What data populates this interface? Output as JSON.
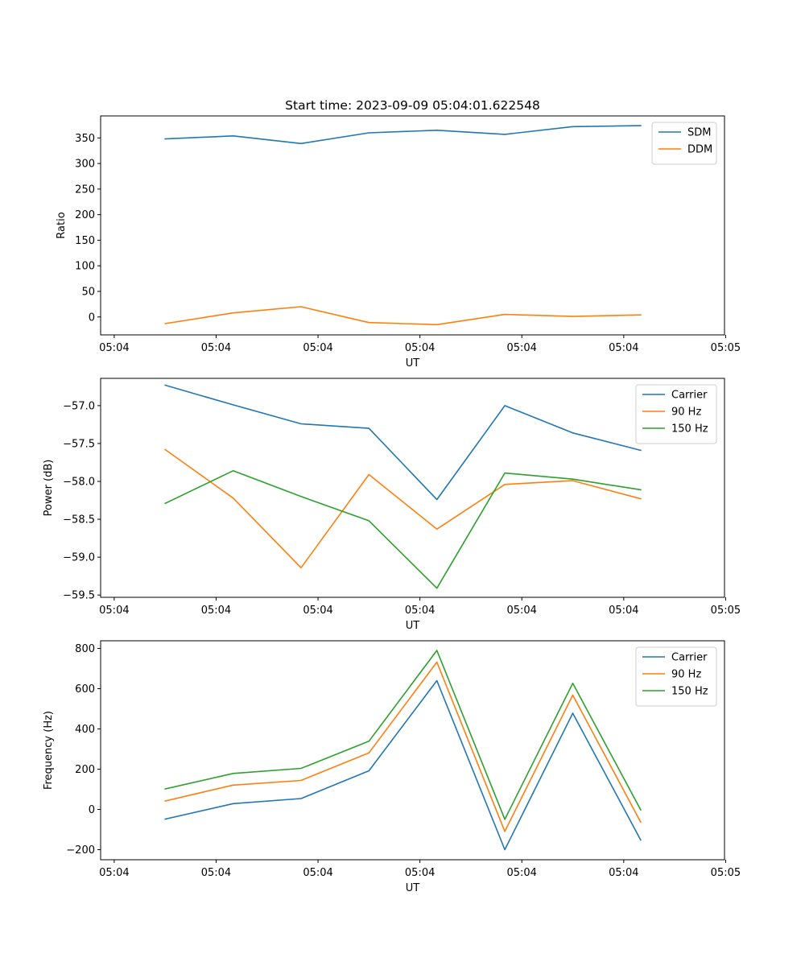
{
  "colors": {
    "blue": "#1f77b4",
    "orange": "#ff7f0e",
    "green": "#2ca02c"
  },
  "chart_data": [
    {
      "type": "line",
      "title": "Start time: 2023-09-09 05:04:01.622548",
      "xlabel": "UT",
      "ylabel": "Ratio",
      "x": [
        0.6,
        1.2,
        1.8,
        2.4,
        3.0,
        3.6,
        4.2,
        4.8
      ],
      "xlim": [
        0.03,
        5.54
      ],
      "xticks": [
        0.15,
        1.05,
        1.95,
        2.85,
        3.75,
        4.65,
        5.55
      ],
      "xtick_labels": [
        "05:04",
        "05:04",
        "05:04",
        "05:04",
        "05:04",
        "05:04",
        "05:05"
      ],
      "ylim": [
        -35,
        393
      ],
      "yticks": [
        0,
        50,
        100,
        150,
        200,
        250,
        300,
        350
      ],
      "ytick_labels": [
        "0",
        "50",
        "100",
        "150",
        "200",
        "250",
        "300",
        "350"
      ],
      "legend_position": "top-right",
      "series": [
        {
          "name": "SDM",
          "color": "#1f77b4",
          "values": [
            348,
            354,
            339,
            360,
            365,
            357,
            372,
            374
          ]
        },
        {
          "name": "DDM",
          "color": "#ff7f0e",
          "values": [
            -13,
            8,
            20,
            -11,
            -15,
            5,
            1,
            4
          ]
        }
      ]
    },
    {
      "type": "line",
      "title": "",
      "xlabel": "UT",
      "ylabel": "Power (dB)",
      "x": [
        0.6,
        1.2,
        1.8,
        2.4,
        3.0,
        3.6,
        4.2,
        4.8
      ],
      "xlim": [
        0.03,
        5.54
      ],
      "xticks": [
        0.15,
        1.05,
        1.95,
        2.85,
        3.75,
        4.65,
        5.55
      ],
      "xtick_labels": [
        "05:04",
        "05:04",
        "05:04",
        "05:04",
        "05:04",
        "05:04",
        "05:05"
      ],
      "ylim": [
        -59.53,
        -56.64
      ],
      "yticks": [
        -59.5,
        -59.0,
        -58.5,
        -58.0,
        -57.5,
        -57.0
      ],
      "ytick_labels": [
        "−59.5",
        "−59.0",
        "−58.5",
        "−58.0",
        "−57.5",
        "−57.0"
      ],
      "legend_position": "top-right",
      "series": [
        {
          "name": "Carrier",
          "color": "#1f77b4",
          "values": [
            -56.73,
            -56.99,
            -57.24,
            -57.3,
            -58.24,
            -57.0,
            -57.36,
            -57.59
          ]
        },
        {
          "name": "90 Hz",
          "color": "#ff7f0e",
          "values": [
            -57.58,
            -58.22,
            -59.14,
            -57.91,
            -58.63,
            -58.04,
            -57.99,
            -58.23
          ]
        },
        {
          "name": "150 Hz",
          "color": "#2ca02c",
          "values": [
            -58.29,
            -57.86,
            -58.2,
            -58.52,
            -59.41,
            -57.89,
            -57.97,
            -58.11
          ]
        }
      ]
    },
    {
      "type": "line",
      "title": "",
      "xlabel": "UT",
      "ylabel": "Frequency (Hz)",
      "x": [
        0.6,
        1.2,
        1.8,
        2.4,
        3.0,
        3.6,
        4.2,
        4.8
      ],
      "xlim": [
        0.03,
        5.54
      ],
      "xticks": [
        0.15,
        1.05,
        1.95,
        2.85,
        3.75,
        4.65,
        5.55
      ],
      "xtick_labels": [
        "05:04",
        "05:04",
        "05:04",
        "05:04",
        "05:04",
        "05:04",
        "05:05"
      ],
      "ylim": [
        -250,
        838
      ],
      "yticks": [
        -200,
        0,
        200,
        400,
        600,
        800
      ],
      "ytick_labels": [
        "−200",
        "0",
        "200",
        "400",
        "600",
        "800"
      ],
      "legend_position": "top-right",
      "series": [
        {
          "name": "Carrier",
          "color": "#1f77b4",
          "values": [
            -48,
            29,
            54,
            192,
            640,
            -200,
            478,
            -152
          ]
        },
        {
          "name": "90 Hz",
          "color": "#ff7f0e",
          "values": [
            42,
            121,
            144,
            281,
            732,
            -109,
            568,
            -63
          ]
        },
        {
          "name": "150 Hz",
          "color": "#2ca02c",
          "values": [
            102,
            179,
            204,
            339,
            790,
            -49,
            627,
            -2
          ]
        }
      ]
    }
  ]
}
